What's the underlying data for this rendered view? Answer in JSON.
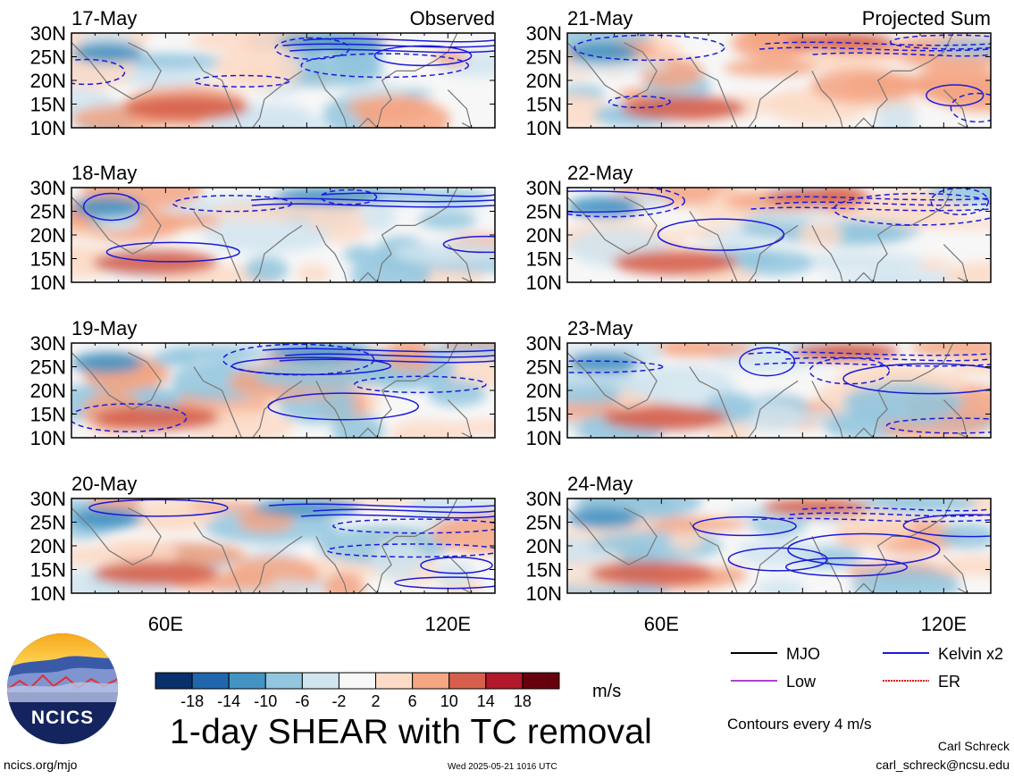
{
  "title": "1-day SHEAR with TC removal",
  "column_headers": [
    "Observed",
    "Projected Sum"
  ],
  "units": "m/s",
  "contour_note": "Contours every 4 m/s",
  "footer": {
    "site": "ncics.org/mjo",
    "timestamp": "Wed 2025-05-21 1016 UTC",
    "author": "Carl Schreck",
    "email": "carl_schreck@ncsu.edu"
  },
  "logo": {
    "text": "NCICS"
  },
  "colors": {
    "negative_strong": "#08306b",
    "positive_strong": "#67000d",
    "coastline": "#777777",
    "kelvin": "#1a1adb",
    "mjo": "#000000",
    "low": "#b040d0",
    "er": "#e01010"
  },
  "contour_legend": [
    {
      "name": "MJO",
      "color": "#000000",
      "style": "solid"
    },
    {
      "name": "Kelvin x2",
      "color": "#1a1adb",
      "style": "solid"
    },
    {
      "name": "Low",
      "color": "#b040d0",
      "style": "solid"
    },
    {
      "name": "ER",
      "color": "#e01010",
      "style": "dotted"
    }
  ],
  "chart_data": {
    "type": "heatmap",
    "variable": "1-day SHEAR with TC removal",
    "units": "m/s",
    "colorbar": {
      "tick_labels": [
        "-18",
        "-14",
        "-10",
        "-6",
        "-2",
        "2",
        "6",
        "10",
        "14",
        "18"
      ],
      "colors": [
        "#08306b",
        "#2166ac",
        "#4393c3",
        "#92c5de",
        "#d1e5f0",
        "#f7f7f7",
        "#fddbc7",
        "#f4a582",
        "#d6604d",
        "#b2182b",
        "#67000d"
      ]
    },
    "axes": {
      "lat_ticks": [
        "30N",
        "25N",
        "20N",
        "15N",
        "10N"
      ],
      "lon_ticks": [
        "60E",
        "120E"
      ],
      "lat_range": [
        10,
        30
      ],
      "lon_range": [
        40,
        130
      ]
    },
    "panels": [
      {
        "date": "17-May",
        "column": "Observed",
        "header": "Observed"
      },
      {
        "date": "18-May",
        "column": "Observed",
        "header": ""
      },
      {
        "date": "19-May",
        "column": "Observed",
        "header": ""
      },
      {
        "date": "20-May",
        "column": "Observed",
        "header": ""
      },
      {
        "date": "21-May",
        "column": "Projected Sum",
        "header": "Projected Sum"
      },
      {
        "date": "22-May",
        "column": "Projected Sum",
        "header": ""
      },
      {
        "date": "23-May",
        "column": "Projected Sum",
        "header": ""
      },
      {
        "date": "24-May",
        "column": "Projected Sum",
        "header": ""
      }
    ]
  }
}
